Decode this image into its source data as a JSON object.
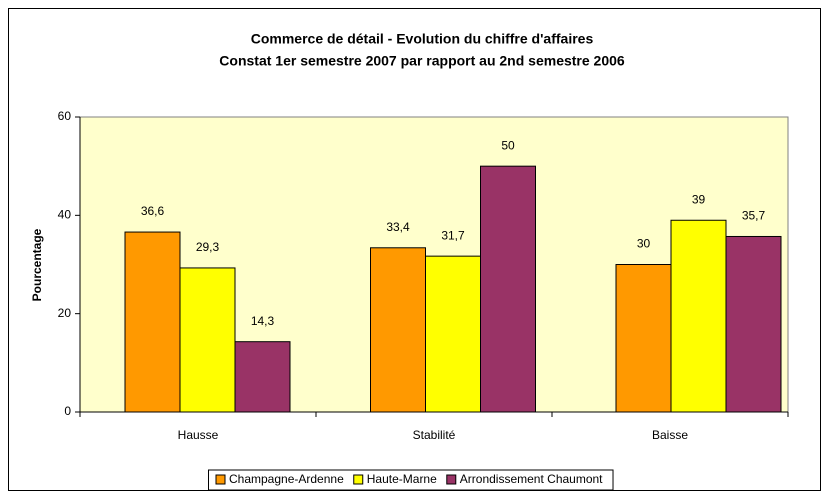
{
  "chart_data": {
    "type": "bar",
    "title": [
      "Commerce de détail - Evolution du chiffre d'affaires",
      "Constat 1er semestre 2007 par rapport au 2nd semestre 2006"
    ],
    "y_label": "Pourcentage",
    "categories": [
      "Hausse",
      "Stabilité",
      "Baisse"
    ],
    "series": [
      {
        "name": "Champagne-Ardenne",
        "color": "#ff9900",
        "values": [
          36.6,
          33.4,
          30
        ],
        "value_labels": [
          "36,6",
          "33,4",
          "30"
        ]
      },
      {
        "name": "Haute-Marne",
        "color": "#ffff00",
        "values": [
          29.3,
          31.7,
          39
        ],
        "value_labels": [
          "29,3",
          "31,7",
          "39"
        ]
      },
      {
        "name": "Arrondissement Chaumont",
        "color": "#993366",
        "values": [
          14.3,
          50,
          35.7
        ],
        "value_labels": [
          "14,3",
          "50",
          "35,7"
        ]
      }
    ],
    "ylim": [
      0,
      60
    ],
    "yticks": [
      0,
      20,
      40,
      60
    ],
    "legend": "bottom"
  }
}
